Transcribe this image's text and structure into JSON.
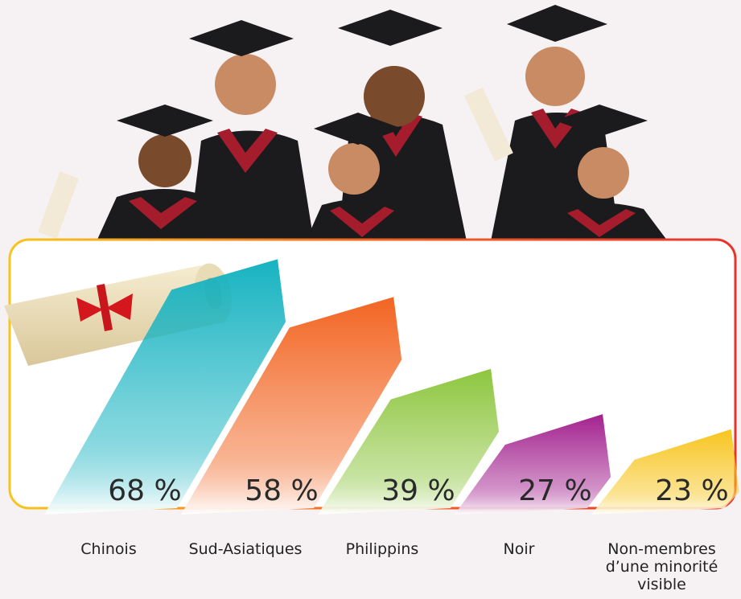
{
  "chart_data": {
    "type": "bar",
    "categories": [
      "Chinois",
      "Sud-Asiatiques",
      "Philippins",
      "Noir",
      "Non-membres d’une minorité visible"
    ],
    "values": [
      68,
      58,
      39,
      27,
      23
    ],
    "value_labels": [
      "68 %",
      "58 %",
      "39 %",
      "27 %",
      "23 %"
    ],
    "colors": [
      "#17b3c1",
      "#f26522",
      "#8dc63f",
      "#a3228f",
      "#f7c51e"
    ]
  }
}
